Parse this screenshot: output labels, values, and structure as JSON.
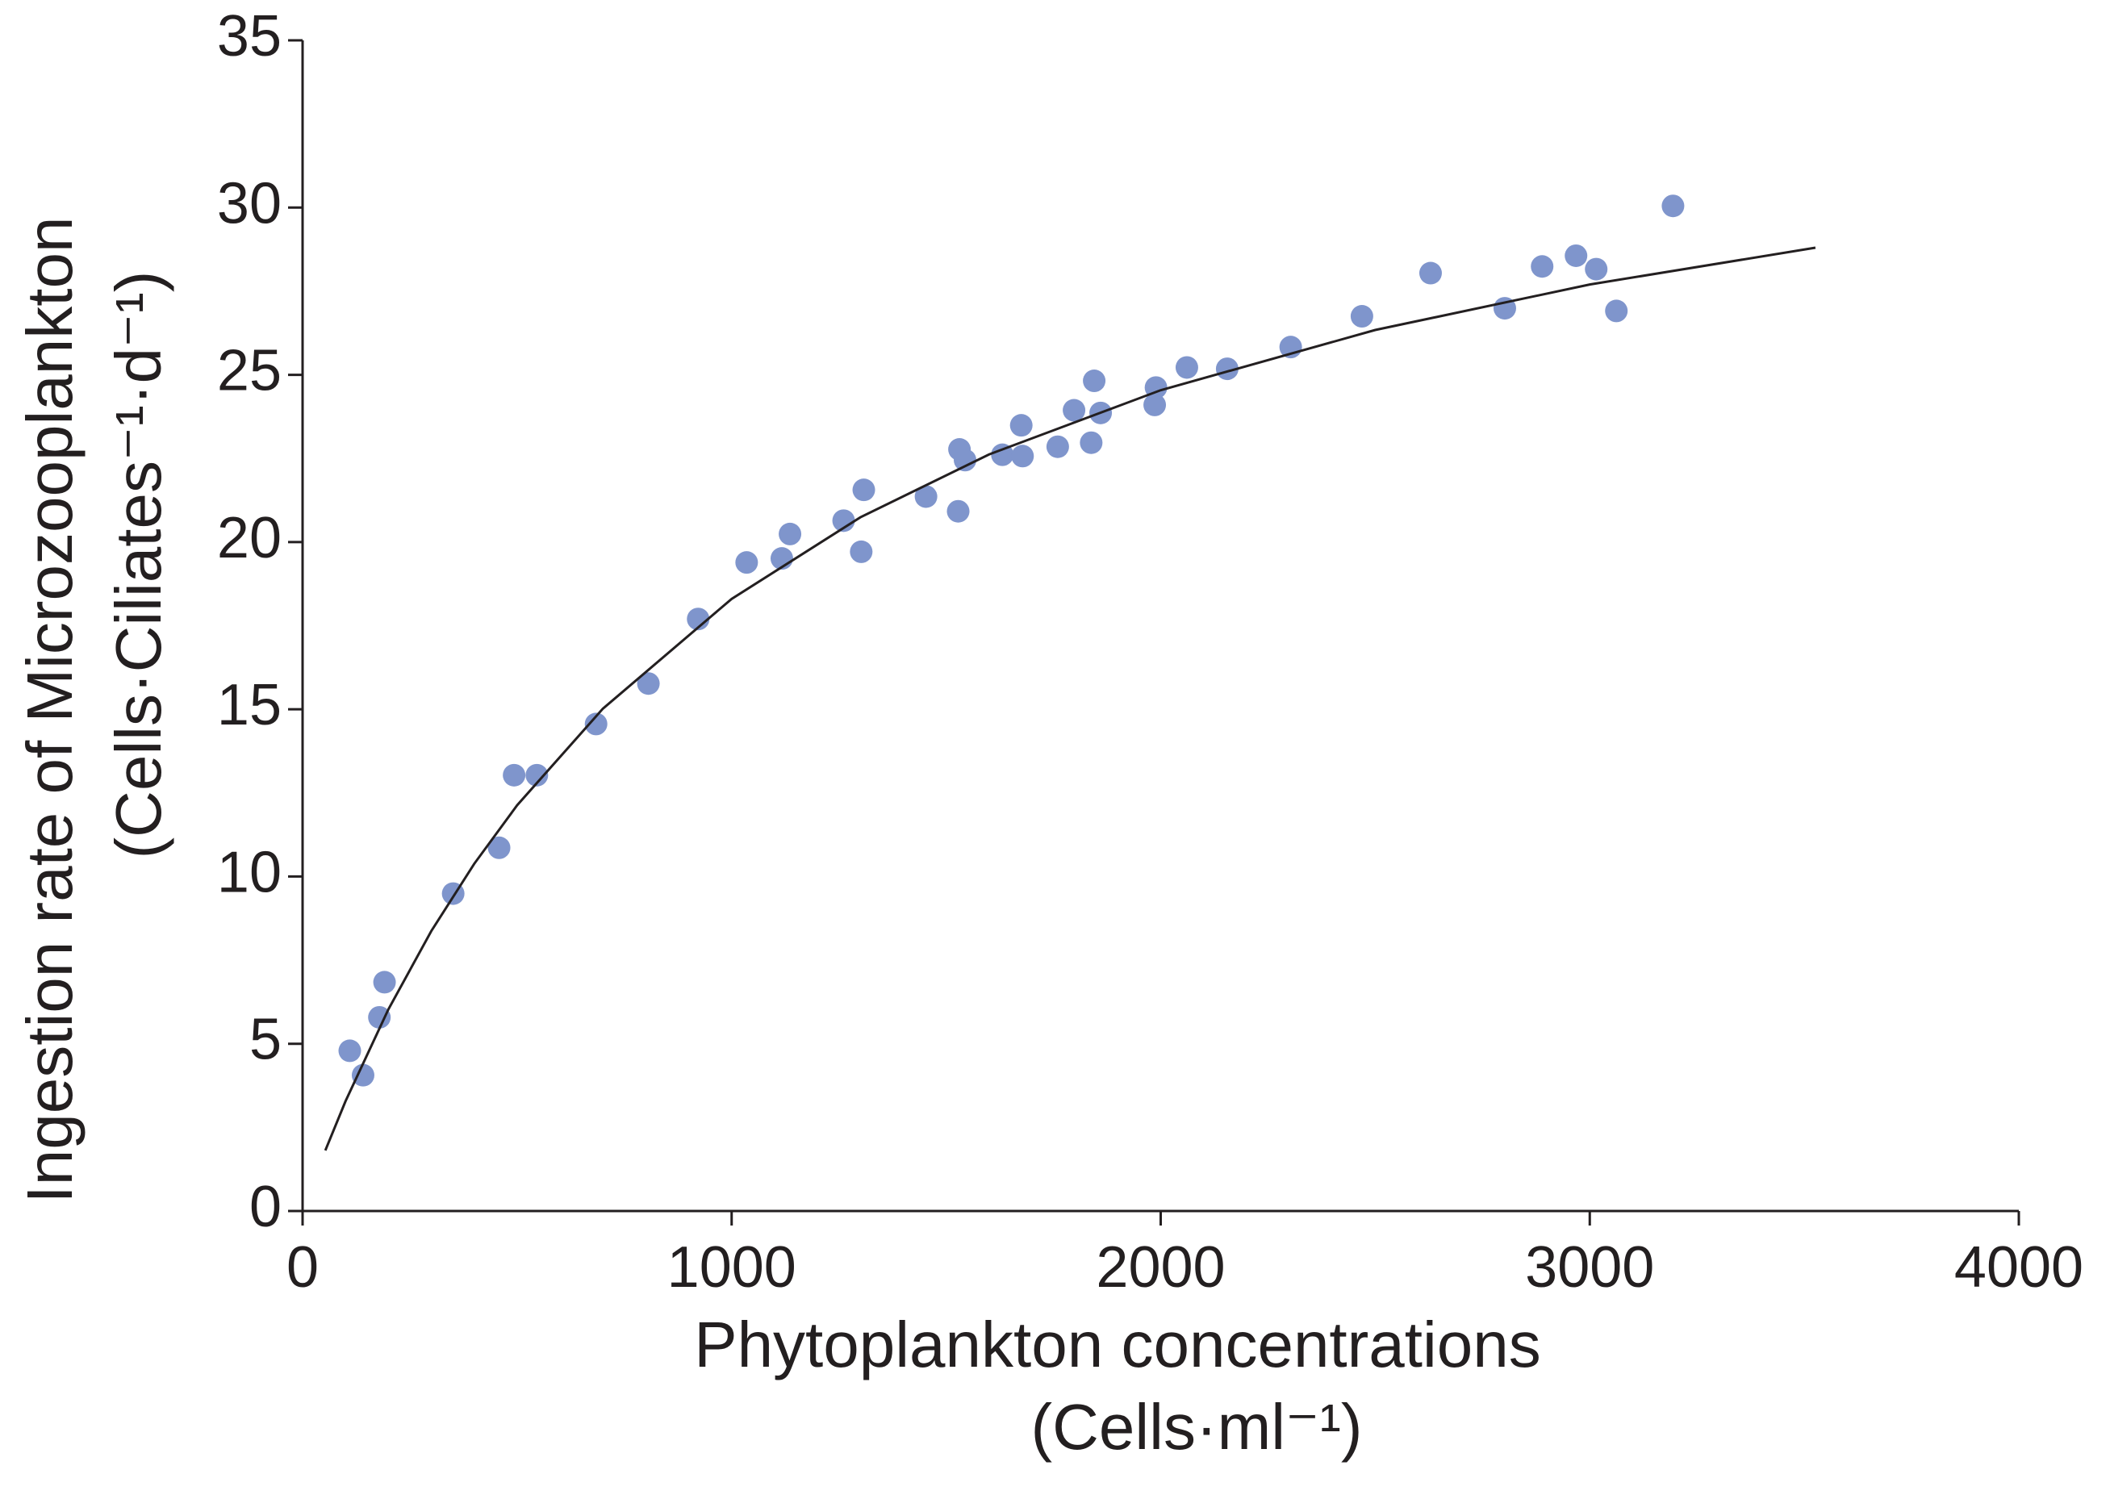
{
  "chart_data": {
    "type": "scatter",
    "xlabel": "Phytoplankton concentrations",
    "xlabel_unit": "(Cells·ml⁻¹)",
    "ylabel": "Ingestion rate of Microzooplankton",
    "ylabel_unit": "(Cells·Ciliates⁻¹·d⁻¹)",
    "xlim": [
      0,
      4000
    ],
    "xticks": [
      0,
      1000,
      2000,
      3000,
      4000
    ],
    "ylim": [
      0,
      35
    ],
    "yticks": [
      0,
      5,
      10,
      15,
      20,
      25,
      30,
      35
    ],
    "grid": false,
    "series": [
      {
        "style": "markers",
        "color": "#7f95cc",
        "x": [
          110,
          141,
          179,
          191,
          351,
          458,
          493,
          546,
          684,
          806,
          922,
          1035,
          1117,
          1136,
          1261,
          1302,
          1308,
          1453,
          1528,
          1531,
          1544,
          1631,
          1675,
          1678,
          1760,
          1798,
          1838,
          1845,
          1860,
          1986,
          1989,
          2061,
          2155,
          2303,
          2469,
          2629,
          2802,
          2889,
          2968,
          3015,
          3062,
          3194
        ],
        "values": [
          4.79,
          4.06,
          5.79,
          6.84,
          9.49,
          10.86,
          13.03,
          13.03,
          14.56,
          15.77,
          17.7,
          19.39,
          19.51,
          20.24,
          20.64,
          19.71,
          21.56,
          21.36,
          20.92,
          22.77,
          22.45,
          22.61,
          23.49,
          22.57,
          22.85,
          23.94,
          22.97,
          24.82,
          23.86,
          24.1,
          24.62,
          25.22,
          25.18,
          25.83,
          26.75,
          28.04,
          26.99,
          28.24,
          28.56,
          28.16,
          26.91,
          30.05
        ]
      },
      {
        "style": "line",
        "color": "#231f20",
        "x": [
          53,
          100,
          200,
          300,
          400,
          500,
          700,
          1000,
          1300,
          1600,
          2000,
          2500,
          3000,
          3526
        ],
        "values": [
          1.81,
          3.28,
          6.03,
          8.37,
          10.38,
          12.13,
          15.02,
          18.3,
          20.74,
          22.62,
          24.54,
          26.34,
          27.7,
          28.8
        ]
      }
    ]
  }
}
